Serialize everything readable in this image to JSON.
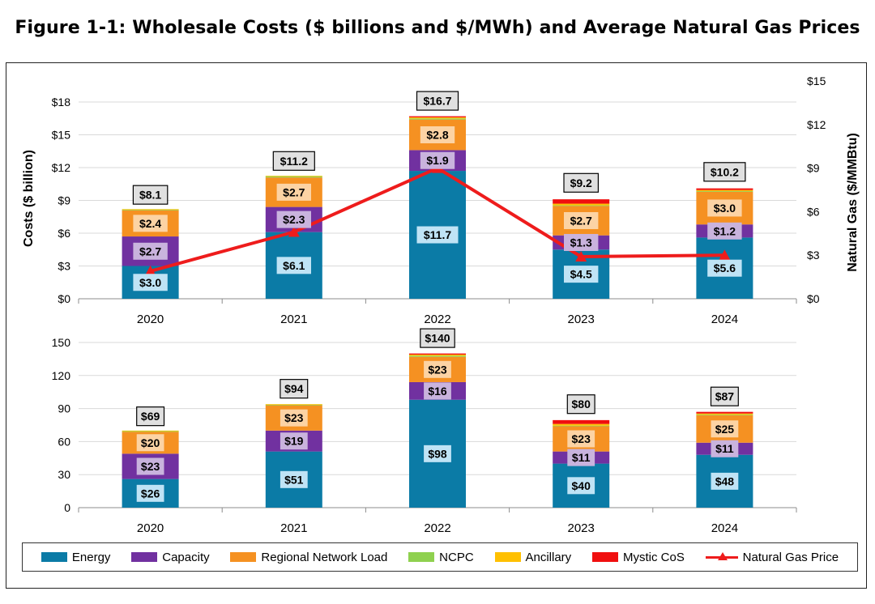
{
  "title": "Figure 1-1: Wholesale Costs ($ billions and $/MWh) and Average Natural Gas Prices",
  "colors": {
    "energy": "#0b7ba6",
    "capacity": "#7131a0",
    "rnl": "#f59122",
    "ncpc": "#8fd14f",
    "ancillary": "#ffc000",
    "mystic": "#f00f0f",
    "gas": "#ee1c1c",
    "label_light": "#bfe3f5",
    "label_purple": "#c9b3dd",
    "label_orange": "#fcd3a4",
    "label_total": "#e0e0e0"
  },
  "legend": [
    {
      "key": "energy",
      "label": "Energy"
    },
    {
      "key": "capacity",
      "label": "Capacity"
    },
    {
      "key": "rnl",
      "label": "Regional Network Load"
    },
    {
      "key": "ncpc",
      "label": "NCPC"
    },
    {
      "key": "ancillary",
      "label": "Ancillary"
    },
    {
      "key": "mystic",
      "label": "Mystic CoS"
    },
    {
      "key": "gas",
      "label": "Natural Gas Price"
    }
  ],
  "chart_data": [
    {
      "type": "bar",
      "stacked": true,
      "name": "top",
      "categories": [
        "2020",
        "2021",
        "2022",
        "2023",
        "2024"
      ],
      "ylabel": "Costs ($ billion)",
      "ylim": [
        0,
        18
      ],
      "yticks": [
        0,
        3,
        6,
        9,
        12,
        15,
        18
      ],
      "ytick_labels": [
        "$0",
        "$3",
        "$6",
        "$9",
        "$12",
        "$15",
        "$18"
      ],
      "y2label": "Natural Gas ($/MMBtu)",
      "y2lim": [
        0,
        15
      ],
      "y2ticks": [
        0,
        3,
        6,
        9,
        12,
        15
      ],
      "y2tick_labels": [
        "$0",
        "$3",
        "$6",
        "$9",
        "$12",
        "$15"
      ],
      "series": [
        {
          "name": "Energy",
          "key": "energy",
          "values": [
            3.0,
            6.1,
            11.7,
            4.5,
            5.6
          ],
          "labels": [
            "$3.0",
            "$6.1",
            "$11.7",
            "$4.5",
            "$5.6"
          ]
        },
        {
          "name": "Capacity",
          "key": "capacity",
          "values": [
            2.7,
            2.3,
            1.9,
            1.3,
            1.2
          ],
          "labels": [
            "$2.7",
            "$2.3",
            "$1.9",
            "$1.3",
            "$1.2"
          ]
        },
        {
          "name": "Regional Network Load",
          "key": "rnl",
          "values": [
            2.4,
            2.7,
            2.8,
            2.7,
            3.0
          ],
          "labels": [
            "$2.4",
            "$2.7",
            "$2.8",
            "$2.7",
            "$3.0"
          ]
        },
        {
          "name": "NCPC",
          "key": "ncpc",
          "values": [
            0.05,
            0.1,
            0.1,
            0.05,
            0.05
          ]
        },
        {
          "name": "Ancillary",
          "key": "ancillary",
          "values": [
            0.05,
            0.05,
            0.1,
            0.15,
            0.1
          ]
        },
        {
          "name": "Mystic CoS",
          "key": "mystic",
          "values": [
            0,
            0,
            0.1,
            0.4,
            0.15
          ]
        }
      ],
      "totals": [
        "$8.1",
        "$11.2",
        "$16.7",
        "$9.2",
        "$10.2"
      ],
      "total_values": [
        8.1,
        11.2,
        16.7,
        9.2,
        10.2
      ],
      "line": {
        "name": "Natural Gas Price",
        "key": "gas",
        "values": [
          1.9,
          4.6,
          9.0,
          2.9,
          3.0
        ]
      }
    },
    {
      "type": "bar",
      "stacked": true,
      "name": "bottom",
      "categories": [
        "2020",
        "2021",
        "2022",
        "2023",
        "2024"
      ],
      "ylabel": "",
      "ylim": [
        0,
        150
      ],
      "yticks": [
        0,
        30,
        60,
        90,
        120,
        150
      ],
      "ytick_labels": [
        "0",
        "30",
        "60",
        "90",
        "120",
        "150"
      ],
      "series": [
        {
          "name": "Energy",
          "key": "energy",
          "values": [
            26,
            51,
            98,
            40,
            48
          ],
          "labels": [
            "$26",
            "$51",
            "$98",
            "$40",
            "$48"
          ]
        },
        {
          "name": "Capacity",
          "key": "capacity",
          "values": [
            23,
            19,
            16,
            11,
            11
          ],
          "labels": [
            "$23",
            "$19",
            "$16",
            "$11",
            "$11"
          ]
        },
        {
          "name": "Regional Network Load",
          "key": "rnl",
          "values": [
            20,
            23,
            23,
            23,
            25
          ],
          "labels": [
            "$20",
            "$23",
            "$23",
            "$23",
            "$25"
          ]
        },
        {
          "name": "NCPC",
          "key": "ncpc",
          "values": [
            0.5,
            0.5,
            1,
            0.5,
            0.5
          ]
        },
        {
          "name": "Ancillary",
          "key": "ancillary",
          "values": [
            0.5,
            0.5,
            1,
            1.5,
            1
          ]
        },
        {
          "name": "Mystic CoS",
          "key": "mystic",
          "values": [
            0,
            0,
            1,
            3.5,
            1.5
          ]
        }
      ],
      "totals": [
        "$69",
        "$94",
        "$140",
        "$80",
        "$87"
      ],
      "total_values": [
        69,
        94,
        140,
        80,
        87
      ]
    }
  ]
}
